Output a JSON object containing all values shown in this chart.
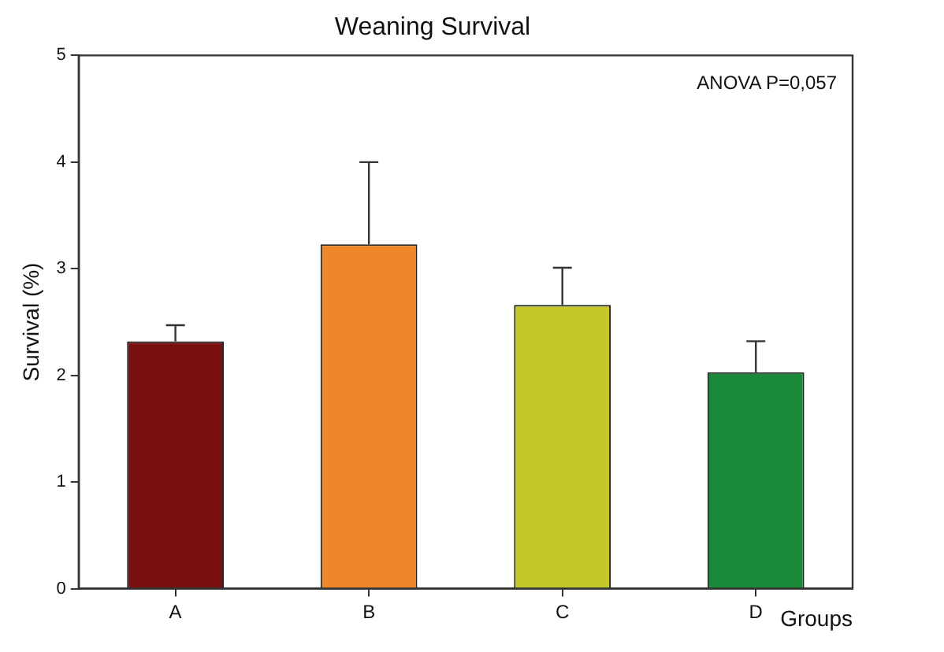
{
  "chart_data": {
    "type": "bar",
    "title": "Weaning Survival",
    "xlabel": "Groups",
    "ylabel": "Survival (%)",
    "categories": [
      "A",
      "B",
      "C",
      "D"
    ],
    "values": [
      2.32,
      3.23,
      2.66,
      2.03
    ],
    "colors": [
      "#7a1010",
      "#f0862a",
      "#c4c82a",
      "#1a8a3a"
    ],
    "errors": [
      [
        2.32,
        2.47
      ],
      [
        3.23,
        4.0
      ],
      [
        2.66,
        3.01
      ],
      [
        2.03,
        2.32
      ]
    ],
    "ylim": [
      0,
      5
    ],
    "yticks": [
      0,
      1,
      2,
      3,
      4,
      5
    ],
    "grid": false,
    "legend": false,
    "annotations": [
      "ANOVA P=0,057"
    ]
  }
}
